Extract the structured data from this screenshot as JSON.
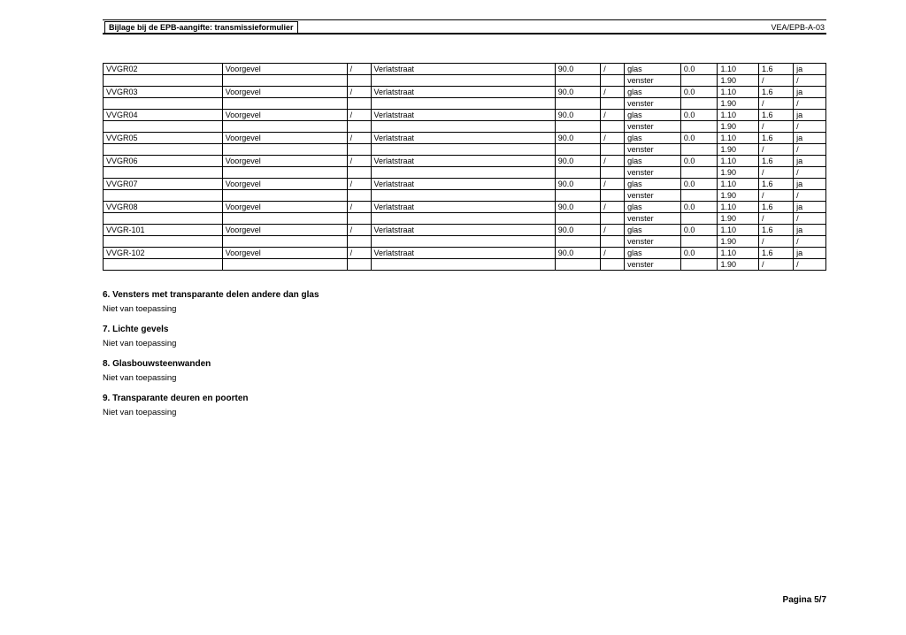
{
  "header": {
    "left": "Bijlage bij de EPB-aangifte: transmissieformulier",
    "right": "VEA/EPB-A-03"
  },
  "table": {
    "rows": [
      {
        "code": "VVGR02",
        "voor": "Voorgevel",
        "s1": "/",
        "verlat": "Verlatstraat",
        "num": "90.0",
        "s2": "/",
        "type": "glas",
        "v1": "0.0",
        "v2": "1.10",
        "v3": "1.6",
        "ja": "ja"
      },
      {
        "code": "",
        "voor": "",
        "s1": "",
        "verlat": "",
        "num": "",
        "s2": "",
        "type": "venster",
        "v1": "",
        "v2": "1.90",
        "v3": "/",
        "ja": "/"
      },
      {
        "code": "VVGR03",
        "voor": "Voorgevel",
        "s1": "/",
        "verlat": "Verlatstraat",
        "num": "90.0",
        "s2": "/",
        "type": "glas",
        "v1": "0.0",
        "v2": "1.10",
        "v3": "1.6",
        "ja": "ja"
      },
      {
        "code": "",
        "voor": "",
        "s1": "",
        "verlat": "",
        "num": "",
        "s2": "",
        "type": "venster",
        "v1": "",
        "v2": "1.90",
        "v3": "/",
        "ja": "/"
      },
      {
        "code": "VVGR04",
        "voor": "Voorgevel",
        "s1": "/",
        "verlat": "Verlatstraat",
        "num": "90.0",
        "s2": "/",
        "type": "glas",
        "v1": "0.0",
        "v2": "1.10",
        "v3": "1.6",
        "ja": "ja"
      },
      {
        "code": "",
        "voor": "",
        "s1": "",
        "verlat": "",
        "num": "",
        "s2": "",
        "type": "venster",
        "v1": "",
        "v2": "1.90",
        "v3": "/",
        "ja": "/"
      },
      {
        "code": "VVGR05",
        "voor": "Voorgevel",
        "s1": "/",
        "verlat": "Verlatstraat",
        "num": "90.0",
        "s2": "/",
        "type": "glas",
        "v1": "0.0",
        "v2": "1.10",
        "v3": "1.6",
        "ja": "ja"
      },
      {
        "code": "",
        "voor": "",
        "s1": "",
        "verlat": "",
        "num": "",
        "s2": "",
        "type": "venster",
        "v1": "",
        "v2": "1.90",
        "v3": "/",
        "ja": "/"
      },
      {
        "code": "VVGR06",
        "voor": "Voorgevel",
        "s1": "/",
        "verlat": "Verlatstraat",
        "num": "90.0",
        "s2": "/",
        "type": "glas",
        "v1": "0.0",
        "v2": "1.10",
        "v3": "1.6",
        "ja": "ja"
      },
      {
        "code": "",
        "voor": "",
        "s1": "",
        "verlat": "",
        "num": "",
        "s2": "",
        "type": "venster",
        "v1": "",
        "v2": "1.90",
        "v3": "/",
        "ja": "/"
      },
      {
        "code": "VVGR07",
        "voor": "Voorgevel",
        "s1": "/",
        "verlat": "Verlatstraat",
        "num": "90.0",
        "s2": "/",
        "type": "glas",
        "v1": "0.0",
        "v2": "1.10",
        "v3": "1.6",
        "ja": "ja"
      },
      {
        "code": "",
        "voor": "",
        "s1": "",
        "verlat": "",
        "num": "",
        "s2": "",
        "type": "venster",
        "v1": "",
        "v2": "1.90",
        "v3": "/",
        "ja": "/"
      },
      {
        "code": "VVGR08",
        "voor": "Voorgevel",
        "s1": "/",
        "verlat": "Verlatstraat",
        "num": "90.0",
        "s2": "/",
        "type": "glas",
        "v1": "0.0",
        "v2": "1.10",
        "v3": "1.6",
        "ja": "ja"
      },
      {
        "code": "",
        "voor": "",
        "s1": "",
        "verlat": "",
        "num": "",
        "s2": "",
        "type": "venster",
        "v1": "",
        "v2": "1.90",
        "v3": "/",
        "ja": "/"
      },
      {
        "code": "VVGR-101",
        "voor": "Voorgevel",
        "s1": "/",
        "verlat": "Verlatstraat",
        "num": "90.0",
        "s2": "/",
        "type": "glas",
        "v1": "0.0",
        "v2": "1.10",
        "v3": "1.6",
        "ja": "ja"
      },
      {
        "code": "",
        "voor": "",
        "s1": "",
        "verlat": "",
        "num": "",
        "s2": "",
        "type": "venster",
        "v1": "",
        "v2": "1.90",
        "v3": "/",
        "ja": "/"
      },
      {
        "code": "VVGR-102",
        "voor": "Voorgevel",
        "s1": "/",
        "verlat": "Verlatstraat",
        "num": "90.0",
        "s2": "/",
        "type": "glas",
        "v1": "0.0",
        "v2": "1.10",
        "v3": "1.6",
        "ja": "ja"
      },
      {
        "code": "",
        "voor": "",
        "s1": "",
        "verlat": "",
        "num": "",
        "s2": "",
        "type": "venster",
        "v1": "",
        "v2": "1.90",
        "v3": "/",
        "ja": "/"
      }
    ]
  },
  "sections": [
    {
      "title": "6. Vensters met transparante delen andere dan glas",
      "body": "Niet van toepassing"
    },
    {
      "title": "7. Lichte gevels",
      "body": "Niet van toepassing"
    },
    {
      "title": "8. Glasbouwsteenwanden",
      "body": "Niet van toepassing"
    },
    {
      "title": "9. Transparante deuren en poorten",
      "body": "Niet van toepassing"
    }
  ],
  "footer": "Pagina 5/7"
}
